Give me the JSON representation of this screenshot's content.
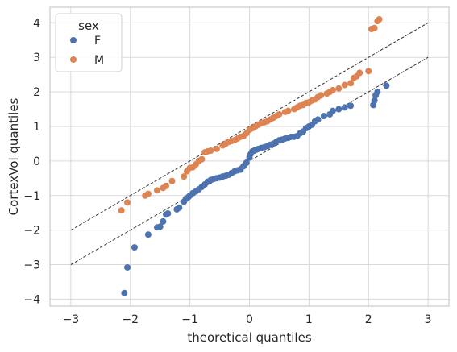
{
  "chart_data": {
    "type": "scatter",
    "title": "",
    "xlabel": "theoretical quantiles",
    "ylabel": "CortexVol quantiles",
    "xlim": [
      -3.35,
      3.35
    ],
    "ylim": [
      -4.2,
      4.45
    ],
    "xticks": [
      -3,
      -2,
      -1,
      0,
      1,
      2,
      3
    ],
    "yticks": [
      -4,
      -3,
      -2,
      -1,
      0,
      1,
      2,
      3,
      4
    ],
    "grid": true,
    "legend": {
      "title": "sex",
      "position": "top-left",
      "entries": [
        "F",
        "M"
      ]
    },
    "colors": {
      "F": "#4c72b0",
      "M": "#dd8452",
      "reference_line": "#333333",
      "grid": "#d9d9d9",
      "frame": "#cccccc"
    },
    "reference_lines": [
      {
        "x": [
          -3,
          3
        ],
        "y": [
          -2,
          4
        ],
        "style": "dashed"
      },
      {
        "x": [
          -3,
          3
        ],
        "y": [
          -3,
          3
        ],
        "style": "dashed"
      }
    ],
    "series": [
      {
        "name": "F",
        "x": [
          -2.1,
          -2.05,
          -1.93,
          -1.7,
          -1.55,
          -1.5,
          -1.45,
          -1.4,
          -1.37,
          -1.22,
          -1.18,
          -1.1,
          -1.07,
          -1.03,
          -1.0,
          -0.95,
          -0.9,
          -0.85,
          -0.8,
          -0.75,
          -0.7,
          -0.65,
          -0.6,
          -0.55,
          -0.5,
          -0.45,
          -0.4,
          -0.35,
          -0.3,
          -0.25,
          -0.2,
          -0.15,
          -0.1,
          -0.05,
          0.0,
          0.02,
          0.05,
          0.08,
          0.12,
          0.15,
          0.2,
          0.25,
          0.3,
          0.35,
          0.4,
          0.45,
          0.5,
          0.55,
          0.6,
          0.65,
          0.7,
          0.75,
          0.8,
          0.85,
          0.9,
          0.95,
          1.0,
          1.05,
          1.1,
          1.15,
          1.25,
          1.35,
          1.4,
          1.5,
          1.6,
          1.7,
          2.08,
          2.1,
          2.12,
          2.15,
          2.3
        ],
        "y": [
          -3.82,
          -3.08,
          -2.5,
          -2.13,
          -1.92,
          -1.9,
          -1.75,
          -1.55,
          -1.52,
          -1.4,
          -1.35,
          -1.18,
          -1.1,
          -1.05,
          -1.0,
          -0.93,
          -0.88,
          -0.82,
          -0.75,
          -0.68,
          -0.6,
          -0.55,
          -0.52,
          -0.5,
          -0.48,
          -0.45,
          -0.43,
          -0.4,
          -0.35,
          -0.3,
          -0.27,
          -0.25,
          -0.15,
          -0.05,
          0.1,
          0.2,
          0.28,
          0.3,
          0.33,
          0.35,
          0.38,
          0.4,
          0.43,
          0.47,
          0.5,
          0.55,
          0.6,
          0.62,
          0.65,
          0.67,
          0.7,
          0.7,
          0.72,
          0.8,
          0.85,
          0.95,
          1.0,
          1.05,
          1.15,
          1.2,
          1.3,
          1.35,
          1.45,
          1.5,
          1.55,
          1.6,
          1.62,
          1.75,
          1.9,
          2.0,
          2.18
        ]
      },
      {
        "name": "M",
        "x": [
          -2.15,
          -2.05,
          -1.75,
          -1.7,
          -1.55,
          -1.45,
          -1.4,
          -1.3,
          -1.1,
          -1.05,
          -1.0,
          -0.95,
          -0.9,
          -0.85,
          -0.8,
          -0.75,
          -0.7,
          -0.65,
          -0.55,
          -0.45,
          -0.4,
          -0.35,
          -0.3,
          -0.25,
          -0.2,
          -0.15,
          -0.1,
          -0.05,
          0.0,
          0.05,
          0.1,
          0.15,
          0.2,
          0.25,
          0.3,
          0.35,
          0.4,
          0.45,
          0.5,
          0.6,
          0.65,
          0.75,
          0.8,
          0.85,
          0.9,
          0.95,
          1.0,
          1.05,
          1.1,
          1.15,
          1.2,
          1.3,
          1.35,
          1.4,
          1.5,
          1.6,
          1.7,
          1.75,
          1.8,
          1.85,
          2.0,
          2.05,
          2.1,
          2.15,
          2.18
        ],
        "y": [
          -1.43,
          -1.2,
          -1.0,
          -0.95,
          -0.85,
          -0.78,
          -0.72,
          -0.58,
          -0.45,
          -0.3,
          -0.2,
          -0.18,
          -0.1,
          0.0,
          0.05,
          0.25,
          0.28,
          0.3,
          0.35,
          0.45,
          0.5,
          0.55,
          0.58,
          0.6,
          0.65,
          0.7,
          0.72,
          0.8,
          0.9,
          0.95,
          1.0,
          1.05,
          1.1,
          1.12,
          1.15,
          1.2,
          1.25,
          1.3,
          1.35,
          1.42,
          1.45,
          1.5,
          1.55,
          1.6,
          1.62,
          1.68,
          1.7,
          1.75,
          1.78,
          1.85,
          1.9,
          1.95,
          2.0,
          2.05,
          2.1,
          2.2,
          2.25,
          2.4,
          2.45,
          2.55,
          2.6,
          3.82,
          3.85,
          4.05,
          4.1
        ]
      }
    ]
  }
}
